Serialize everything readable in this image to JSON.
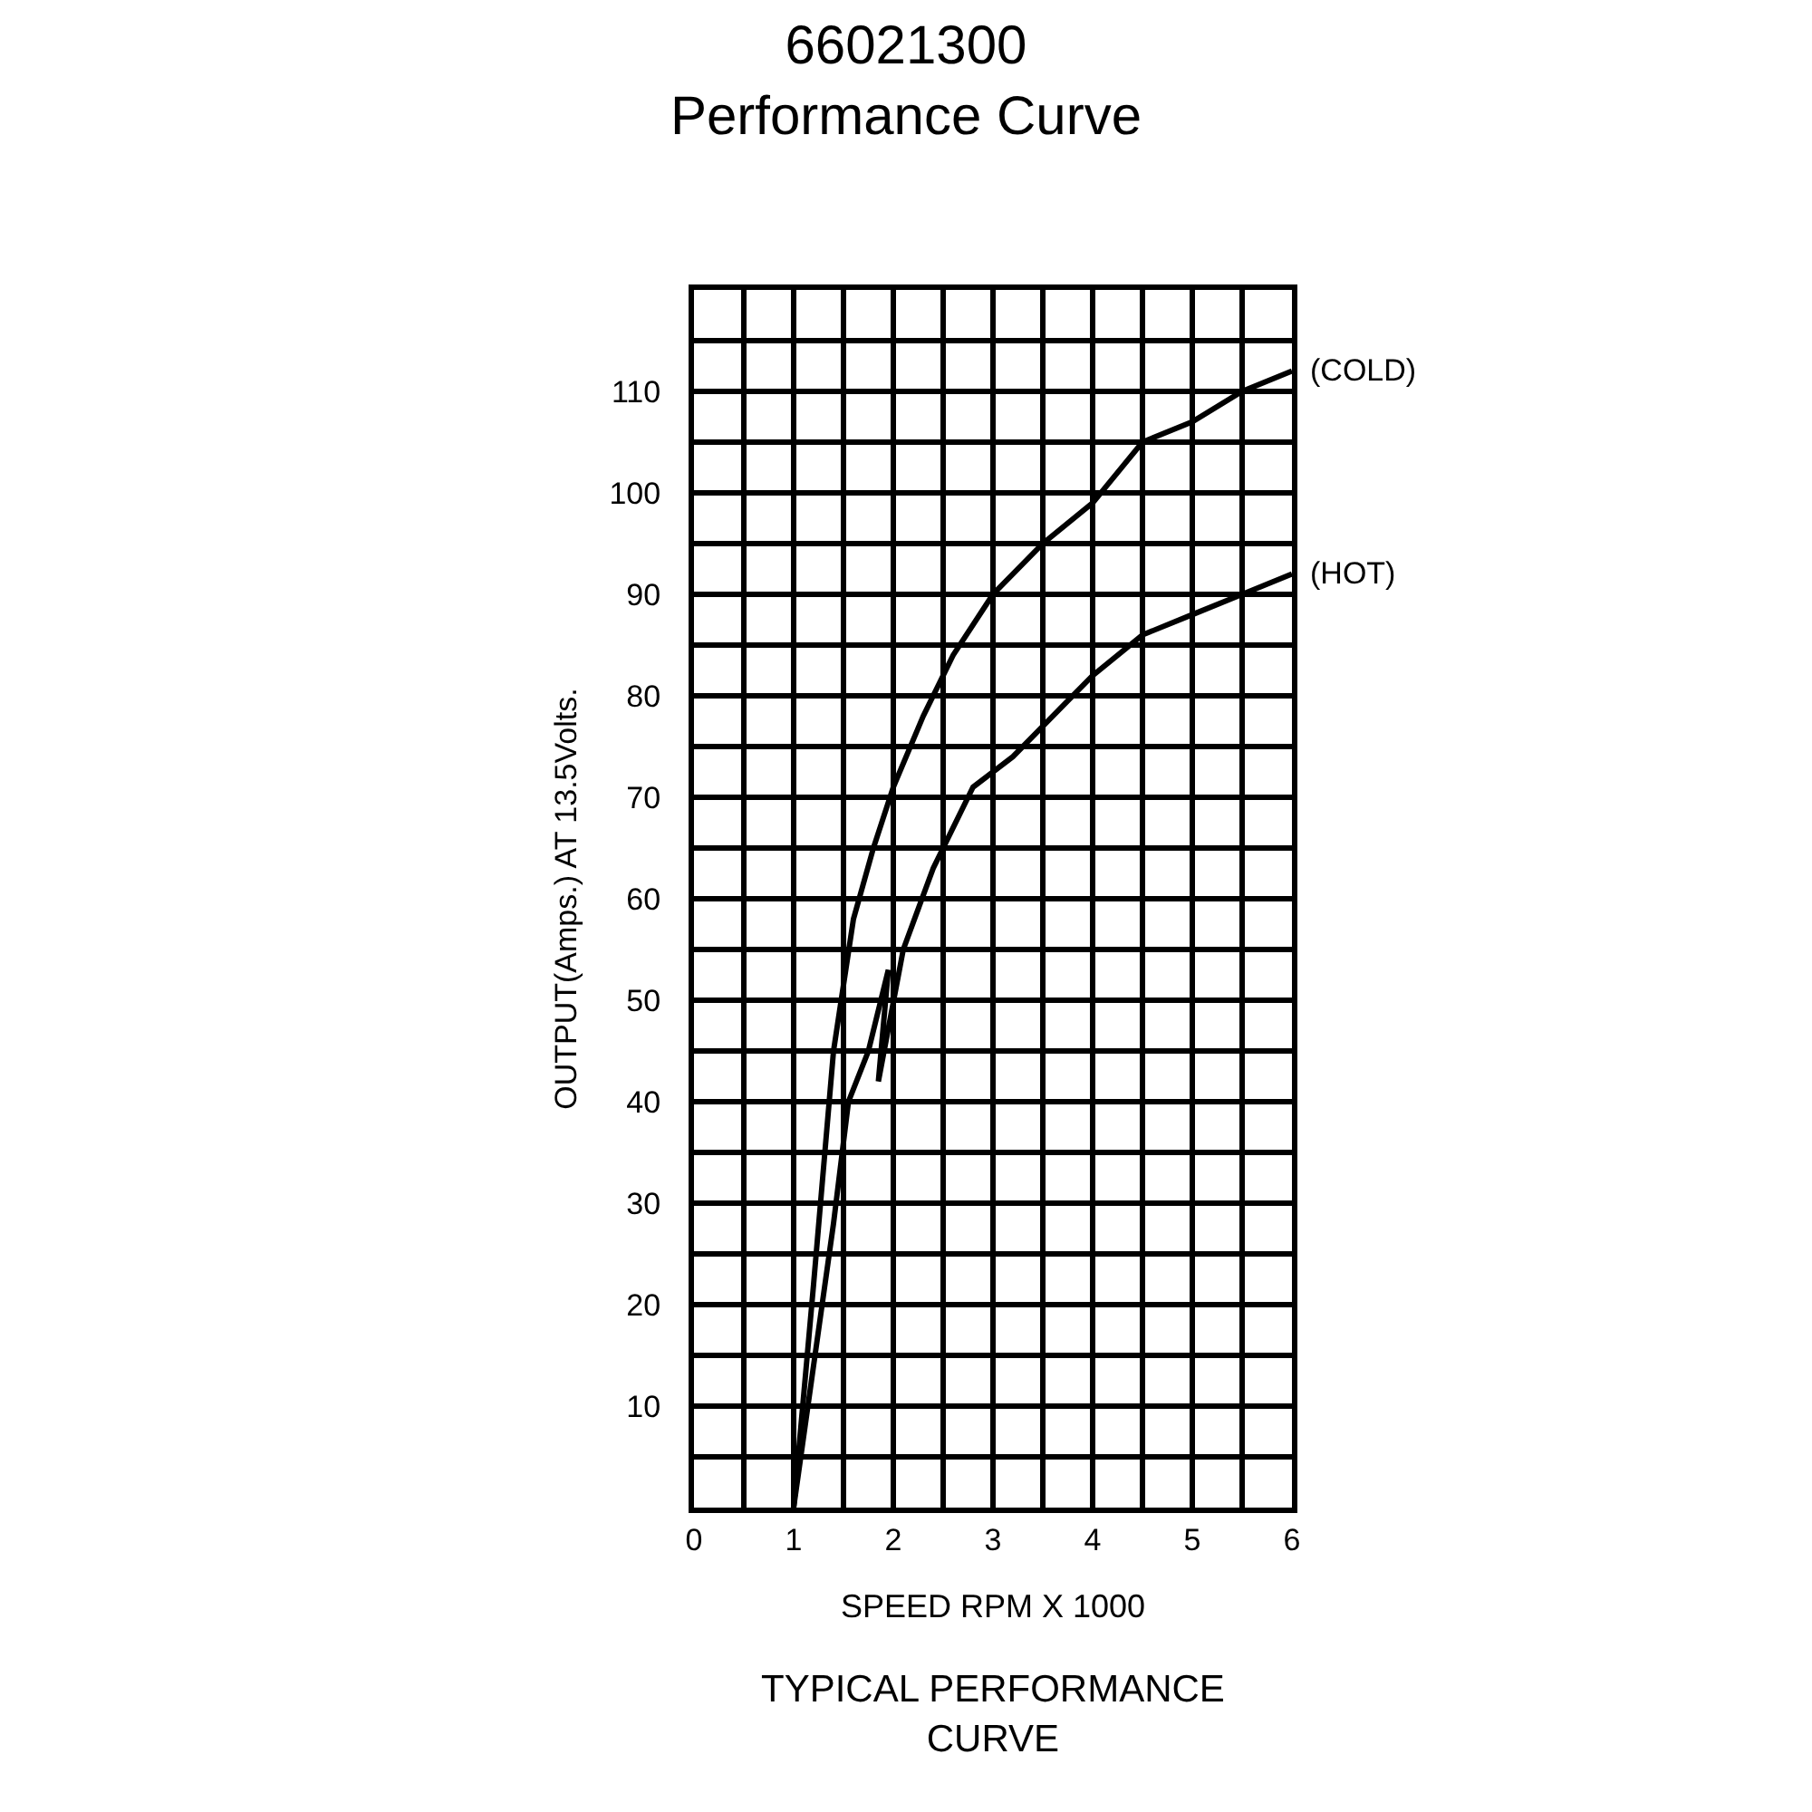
{
  "chart_data": {
    "type": "line",
    "title": "66021300",
    "subtitle": "Performance Curve",
    "xlabel": "SPEED RPM X 1000",
    "ylabel": "OUTPUT(Amps.) AT 13.5Volts.",
    "annotations": [
      "TYPICAL PERFORMANCE\nCURVE"
    ],
    "xlim": [
      0,
      6
    ],
    "ylim": [
      0,
      120
    ],
    "xticks": [
      0,
      {
        "value": 0.5,
        "label": null
      },
      1,
      {
        "value": 1.5,
        "label": null
      },
      2,
      {
        "value": 2.5,
        "label": null
      },
      3,
      {
        "value": 3.5,
        "label": null
      },
      4,
      {
        "value": 4.5,
        "label": null
      },
      5,
      {
        "value": 5.5,
        "label": null
      },
      6
    ],
    "yticks": [
      {
        "value": 5,
        "label": null
      },
      10,
      {
        "value": 15,
        "label": null
      },
      20,
      {
        "value": 25,
        "label": null
      },
      30,
      {
        "value": 35,
        "label": null
      },
      40,
      {
        "value": 45,
        "label": null
      },
      50,
      {
        "value": 55,
        "label": null
      },
      60,
      {
        "value": 65,
        "label": null
      },
      70,
      {
        "value": 75,
        "label": null
      },
      80,
      {
        "value": 85,
        "label": null
      },
      90,
      {
        "value": 95,
        "label": null
      },
      100,
      {
        "value": 105,
        "label": null
      },
      110,
      {
        "value": 115,
        "label": null
      },
      {
        "value": 120,
        "label": null
      }
    ],
    "grid": true,
    "legend": false,
    "series": [
      {
        "name": "(COLD)",
        "color": "#000000",
        "x": [
          1.0,
          1.2,
          1.4,
          1.6,
          1.8,
          2.0,
          2.3,
          2.6,
          3.0,
          3.5,
          4.0,
          4.5,
          5.0,
          5.5,
          6.0
        ],
        "values": [
          0,
          22,
          45,
          58,
          65,
          71,
          78,
          84,
          90,
          95,
          99,
          105,
          107,
          110,
          112
        ]
      },
      {
        "name": "(HOT)",
        "color": "#000000",
        "x": [
          1.0,
          1.2,
          1.4,
          1.55,
          1.75,
          1.95,
          1.85,
          2.1,
          2.4,
          2.8,
          3.2,
          3.6,
          4.0,
          4.5,
          5.0,
          5.5,
          6.0
        ],
        "values": [
          0,
          14,
          28,
          40,
          45,
          53,
          42,
          55,
          63,
          71,
          74,
          78,
          82,
          86,
          88,
          90,
          92
        ]
      }
    ]
  }
}
